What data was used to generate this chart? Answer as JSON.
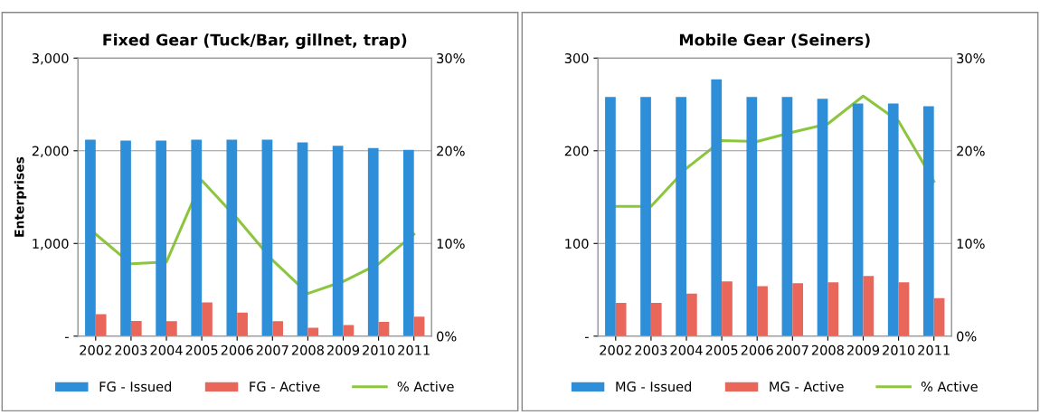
{
  "chart_data": [
    {
      "type": "bar",
      "title": "Fixed Gear (Tuck/Bar, gillnet, trap)",
      "ylabel": "Enterprises",
      "categories": [
        "2002",
        "2003",
        "2004",
        "2005",
        "2006",
        "2007",
        "2008",
        "2009",
        "2010",
        "2011"
      ],
      "series": [
        {
          "name": "FG - Issued",
          "color": "#2e8fd8",
          "values": [
            2120,
            2110,
            2110,
            2120,
            2120,
            2120,
            2090,
            2055,
            2030,
            2010
          ]
        },
        {
          "name": "FG - Active",
          "color": "#e8665a",
          "values": [
            237,
            165,
            162,
            363,
            255,
            162,
            90,
            119,
            155,
            209
          ]
        },
        {
          "name": "% Active",
          "type": "line",
          "axis": "y2",
          "color": "#8cc63f",
          "values": [
            11.0,
            7.8,
            8.0,
            16.8,
            12.7,
            8.2,
            4.6,
            5.9,
            7.8,
            11.0
          ]
        }
      ],
      "ylim": [
        0,
        3000
      ],
      "yticks": [
        {
          "value": 0,
          "label": "-"
        },
        {
          "value": 1000,
          "label": "1,000"
        },
        {
          "value": 2000,
          "label": "2,000"
        },
        {
          "value": 3000,
          "label": "3,000"
        }
      ],
      "y2lim": [
        0,
        30
      ],
      "y2ticks": [
        {
          "value": 0,
          "label": "0%"
        },
        {
          "value": 10,
          "label": "10%"
        },
        {
          "value": 20,
          "label": "20%"
        },
        {
          "value": 30,
          "label": "30%"
        }
      ],
      "grid": "y",
      "legend": "bottom",
      "marker": "none",
      "line_style": "solid"
    },
    {
      "type": "bar",
      "title": "Mobile Gear (Seiners)",
      "categories": [
        "2002",
        "2003",
        "2004",
        "2005",
        "2006",
        "2007",
        "2008",
        "2009",
        "2010",
        "2011"
      ],
      "series": [
        {
          "name": "MG - Issued",
          "color": "#2e8fd8",
          "values": [
            258,
            258,
            258,
            277,
            258,
            258,
            256,
            251,
            251,
            248
          ]
        },
        {
          "name": "MG - Active",
          "color": "#e8665a",
          "values": [
            36,
            36,
            46,
            59,
            54,
            57,
            58,
            65,
            58,
            41
          ]
        },
        {
          "name": "% Active",
          "type": "line",
          "axis": "y2",
          "color": "#8cc63f",
          "values": [
            14.0,
            14.0,
            18.1,
            21.1,
            21.0,
            22.0,
            22.9,
            25.9,
            23.2,
            16.7
          ]
        }
      ],
      "ylim": [
        0,
        300
      ],
      "yticks": [
        {
          "value": 0,
          "label": "-"
        },
        100,
        200,
        300
      ],
      "y2lim": [
        0,
        30
      ],
      "y2ticks": [
        {
          "value": 0,
          "label": "0%"
        },
        {
          "value": 10,
          "label": "10%"
        },
        {
          "value": 20,
          "label": "20%"
        },
        {
          "value": 30,
          "label": "30%"
        }
      ],
      "grid": "y",
      "legend": "bottom",
      "marker": "none",
      "line_style": "solid"
    }
  ]
}
